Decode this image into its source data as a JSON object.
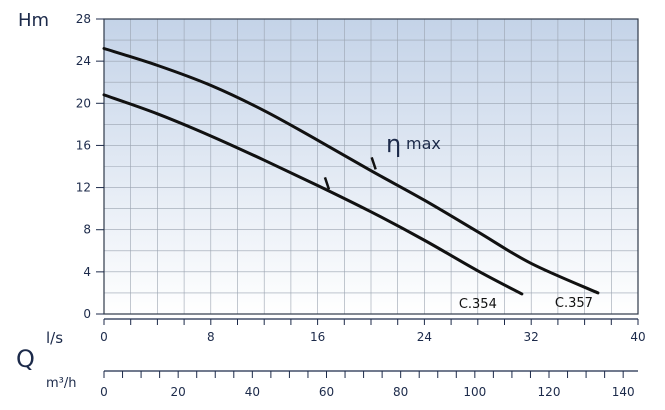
{
  "chart_data": {
    "type": "line",
    "ylabel": "Hm",
    "xlabel": "l/s",
    "flow_symbol": "Q",
    "secondary_x_label": "m³/h",
    "xlim": [
      0,
      40
    ],
    "ylim": [
      0,
      28
    ],
    "x_ticks": [
      0,
      8,
      16,
      24,
      32,
      40
    ],
    "y_ticks": [
      0,
      4,
      8,
      12,
      16,
      20,
      24,
      28
    ],
    "secondary_x_ticks": [
      0,
      20,
      40,
      60,
      80,
      100,
      120,
      140
    ],
    "grid": true,
    "series": [
      {
        "name": "C.357",
        "x": [
          0,
          4,
          8,
          12,
          16,
          20,
          24,
          28,
          32,
          37
        ],
        "y": [
          25.2,
          23.6,
          21.7,
          19.3,
          16.5,
          13.6,
          10.8,
          7.8,
          4.8,
          2.0
        ],
        "marker_x": 20.2,
        "marker_y": 14.3
      },
      {
        "name": "C.354",
        "x": [
          0,
          4,
          8,
          12,
          16,
          20,
          24,
          28,
          31.3
        ],
        "y": [
          20.8,
          19.0,
          16.9,
          14.6,
          12.2,
          9.7,
          7.0,
          4.1,
          1.9
        ],
        "marker_x": 16.7,
        "marker_y": 12.4
      }
    ],
    "annotations": [
      {
        "text_symbol": "η",
        "text": "max"
      }
    ]
  }
}
